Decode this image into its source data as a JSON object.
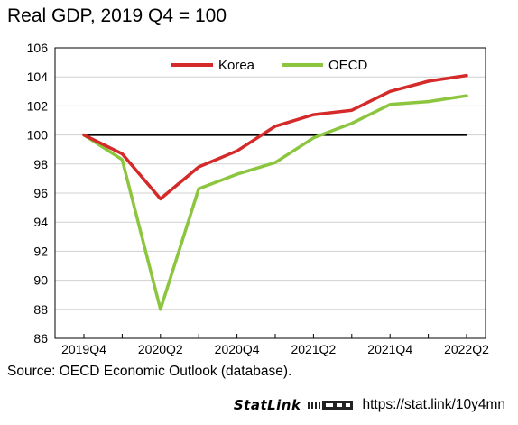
{
  "chart_data": {
    "type": "line",
    "title": "Real GDP, 2019 Q4 = 100",
    "x": [
      "2019Q4",
      "2020Q1",
      "2020Q2",
      "2020Q3",
      "2020Q4",
      "2021Q1",
      "2021Q2",
      "2021Q3",
      "2021Q4",
      "2022Q1",
      "2022Q2"
    ],
    "x_tick_labels": [
      "2019Q4",
      "2020Q2",
      "2020Q4",
      "2021Q2",
      "2021Q4",
      "2022Q2"
    ],
    "ylim": [
      86,
      106
    ],
    "y_ticks": [
      86,
      88,
      90,
      92,
      94,
      96,
      98,
      100,
      102,
      104,
      106
    ],
    "grid": true,
    "legend": "top-right",
    "reference_line": 100,
    "series": [
      {
        "name": "Korea",
        "color": "#d42a2a",
        "values": [
          100.0,
          98.7,
          95.6,
          97.8,
          98.9,
          100.6,
          101.4,
          101.7,
          103.0,
          103.7,
          104.1
        ]
      },
      {
        "name": "OECD",
        "color": "#8cc63f",
        "values": [
          100.0,
          98.3,
          88.0,
          96.3,
          97.3,
          98.1,
          99.8,
          100.8,
          102.1,
          102.3,
          102.7
        ]
      }
    ]
  },
  "footer": {
    "source": "Source: OECD Economic Outlook (database).",
    "statlink_label": "StatLink",
    "statlink_url": "https://stat.link/10y4mn"
  }
}
